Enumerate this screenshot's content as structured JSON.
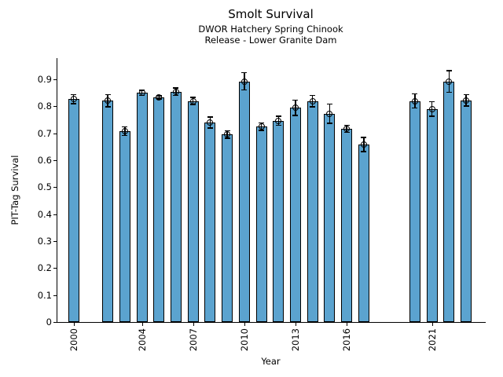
{
  "figure": {
    "title": "Smolt Survival",
    "subtitle_line1": "DWOR Hatchery Spring Chinook",
    "subtitle_line2": "Release - Lower Granite Dam"
  },
  "chart_data": {
    "type": "bar",
    "title": "Smolt Survival",
    "subtitle": [
      "DWOR Hatchery Spring Chinook",
      "Release - Lower Granite Dam"
    ],
    "xlabel": "Year",
    "ylabel": "PIT-Tag Survival",
    "bar_color": "#5BA3CF",
    "bar_edge_color": "#000000",
    "error_bar_color": "#000000",
    "background_color": "#FFFFFF",
    "grid": false,
    "legend": "none",
    "xlim": [
      1999,
      2024.1
    ],
    "ylim": [
      0,
      0.978
    ],
    "yticks": [
      0,
      0.1,
      0.2,
      0.3,
      0.4,
      0.5,
      0.6,
      0.7,
      0.8,
      0.9
    ],
    "ytick_labels": [
      "0",
      "0.1",
      "0.2",
      "0.3",
      "0.4",
      "0.5",
      "0.6",
      "0.7",
      "0.8",
      "0.9"
    ],
    "xticks": [
      2000,
      2004,
      2007,
      2010,
      2013,
      2016,
      2021
    ],
    "xtick_labels": [
      "2000",
      "2004",
      "2007",
      "2010",
      "2013",
      "2016",
      "2021"
    ],
    "missing_years": [
      2001,
      2018,
      2019
    ],
    "series": [
      {
        "name": "PIT-Tag Survival",
        "points": [
          {
            "year": 2000,
            "value": 0.826,
            "error": 0.017
          },
          {
            "year": 2002,
            "value": 0.82,
            "error": 0.022
          },
          {
            "year": 2003,
            "value": 0.707,
            "error": 0.016
          },
          {
            "year": 2004,
            "value": 0.849,
            "error": 0.009
          },
          {
            "year": 2005,
            "value": 0.833,
            "error": 0.006
          },
          {
            "year": 2006,
            "value": 0.854,
            "error": 0.014
          },
          {
            "year": 2007,
            "value": 0.819,
            "error": 0.013
          },
          {
            "year": 2008,
            "value": 0.739,
            "error": 0.02
          },
          {
            "year": 2009,
            "value": 0.695,
            "error": 0.014
          },
          {
            "year": 2010,
            "value": 0.892,
            "error": 0.032
          },
          {
            "year": 2011,
            "value": 0.724,
            "error": 0.014
          },
          {
            "year": 2012,
            "value": 0.746,
            "error": 0.017
          },
          {
            "year": 2013,
            "value": 0.794,
            "error": 0.029
          },
          {
            "year": 2014,
            "value": 0.819,
            "error": 0.021
          },
          {
            "year": 2015,
            "value": 0.772,
            "error": 0.036
          },
          {
            "year": 2016,
            "value": 0.716,
            "error": 0.013
          },
          {
            "year": 2017,
            "value": 0.658,
            "error": 0.026
          },
          {
            "year": 2020,
            "value": 0.819,
            "error": 0.026
          },
          {
            "year": 2021,
            "value": 0.789,
            "error": 0.027
          },
          {
            "year": 2022,
            "value": 0.891,
            "error": 0.04
          },
          {
            "year": 2023,
            "value": 0.821,
            "error": 0.021
          }
        ]
      }
    ]
  }
}
